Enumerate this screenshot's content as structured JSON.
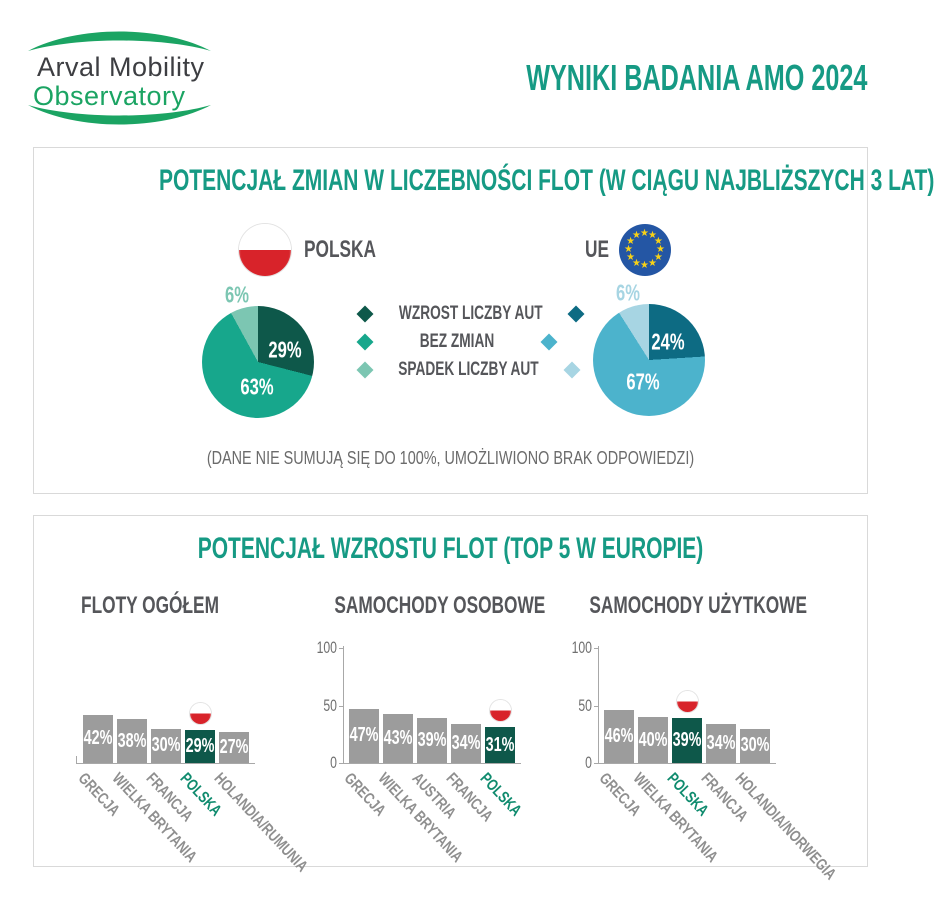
{
  "header": {
    "logo_line1": "Arval Mobility",
    "logo_line2": "Observatory",
    "title": "WYNIKI BADANIA AMO 2024"
  },
  "panel1": {
    "title": "POTENCJAŁ ZMIAN W LICZEBNOŚCI FLOT (W CIĄGU NAJBLIŻSZYCH 3 LAT)",
    "groups": [
      {
        "name": "POLSKA",
        "flag": "poland-flag"
      },
      {
        "name": "UE",
        "flag": "eu-flag"
      }
    ],
    "legend": [
      "WZROST LICZBY AUT",
      "BEZ ZMIAN",
      "SPADEK LICZBY AUT"
    ],
    "footnote": "(DANE NIE SUMUJĄ SIĘ DO 100%, UMOŻLIWIONO BRAK ODPOWIEDZI)"
  },
  "panel2": {
    "title": "POTENCJAŁ WZROSTU FLOT (TOP 5 W EUROPIE)"
  },
  "chart_data": [
    {
      "type": "pie",
      "name": "POLSKA",
      "categories": [
        "WZROST LICZBY AUT",
        "BEZ ZMIAN",
        "SPADEK LICZBY AUT"
      ],
      "values": [
        29,
        63,
        6
      ],
      "unit": "%",
      "colors": [
        "#0e584a",
        "#17a78c",
        "#7cc6b2"
      ],
      "note": "DANE NIE SUMUJĄ SIĘ DO 100%, UMOŻLIWIONO BRAK ODPOWIEDZI"
    },
    {
      "type": "pie",
      "name": "UE",
      "categories": [
        "WZROST LICZBY AUT",
        "BEZ ZMIAN",
        "SPADEK LICZBY AUT"
      ],
      "values": [
        24,
        67,
        6
      ],
      "unit": "%",
      "colors": [
        "#0d6b83",
        "#4cb3cc",
        "#a7d5e3"
      ],
      "note": "DANE NIE SUMUJĄ SIĘ DO 100%, UMOŻLIWIONO BRAK ODPOWIEDZI"
    },
    {
      "type": "bar",
      "title": "FLOTY OGÓŁEM",
      "categories": [
        "GRECJA",
        "WIELKA BRYTANIA",
        "FRANCJA",
        "POLSKA",
        "HOLANDIA/RUMUNIA"
      ],
      "values": [
        42,
        38,
        30,
        29,
        27
      ],
      "unit": "%",
      "ylim": [
        0,
        100
      ],
      "yticks": [],
      "highlight": "POLSKA"
    },
    {
      "type": "bar",
      "title": "SAMOCHODY OSOBOWE",
      "categories": [
        "GRECJA",
        "WIELKA BRYTANIA",
        "AUSTRIA",
        "FRANCJA",
        "POLSKA"
      ],
      "values": [
        47,
        43,
        39,
        34,
        31
      ],
      "unit": "%",
      "ylim": [
        0,
        100
      ],
      "yticks": [
        0,
        50,
        100
      ],
      "highlight": "POLSKA"
    },
    {
      "type": "bar",
      "title": "SAMOCHODY UŻYTKOWE",
      "categories": [
        "GRECJA",
        "WIELKA BRYTANIA",
        "POLSKA",
        "FRANCJA",
        "HOLANDIA/NORWEGIA"
      ],
      "values": [
        46,
        40,
        39,
        34,
        30
      ],
      "unit": "%",
      "ylim": [
        0,
        100
      ],
      "yticks": [
        0,
        50,
        100
      ],
      "highlight": "POLSKA"
    }
  ],
  "colors": {
    "accent_teal": "#169a84",
    "bar_gray": "#9c9c9c",
    "bar_highlight": "#0e584a",
    "highlight_label": "#0f8b6e",
    "label_gray": "#8f8f8f",
    "text_dark": "#55565a",
    "axis_gray": "#707070",
    "footnote_gray": "#6b6b6b",
    "flag_red": "#d8232a",
    "eu_blue": "#2456a4",
    "eu_star": "#f7d117",
    "logo_green": "#1ba463",
    "logo_text": "#3d3e42",
    "panel_border": "#d9d9d9"
  }
}
